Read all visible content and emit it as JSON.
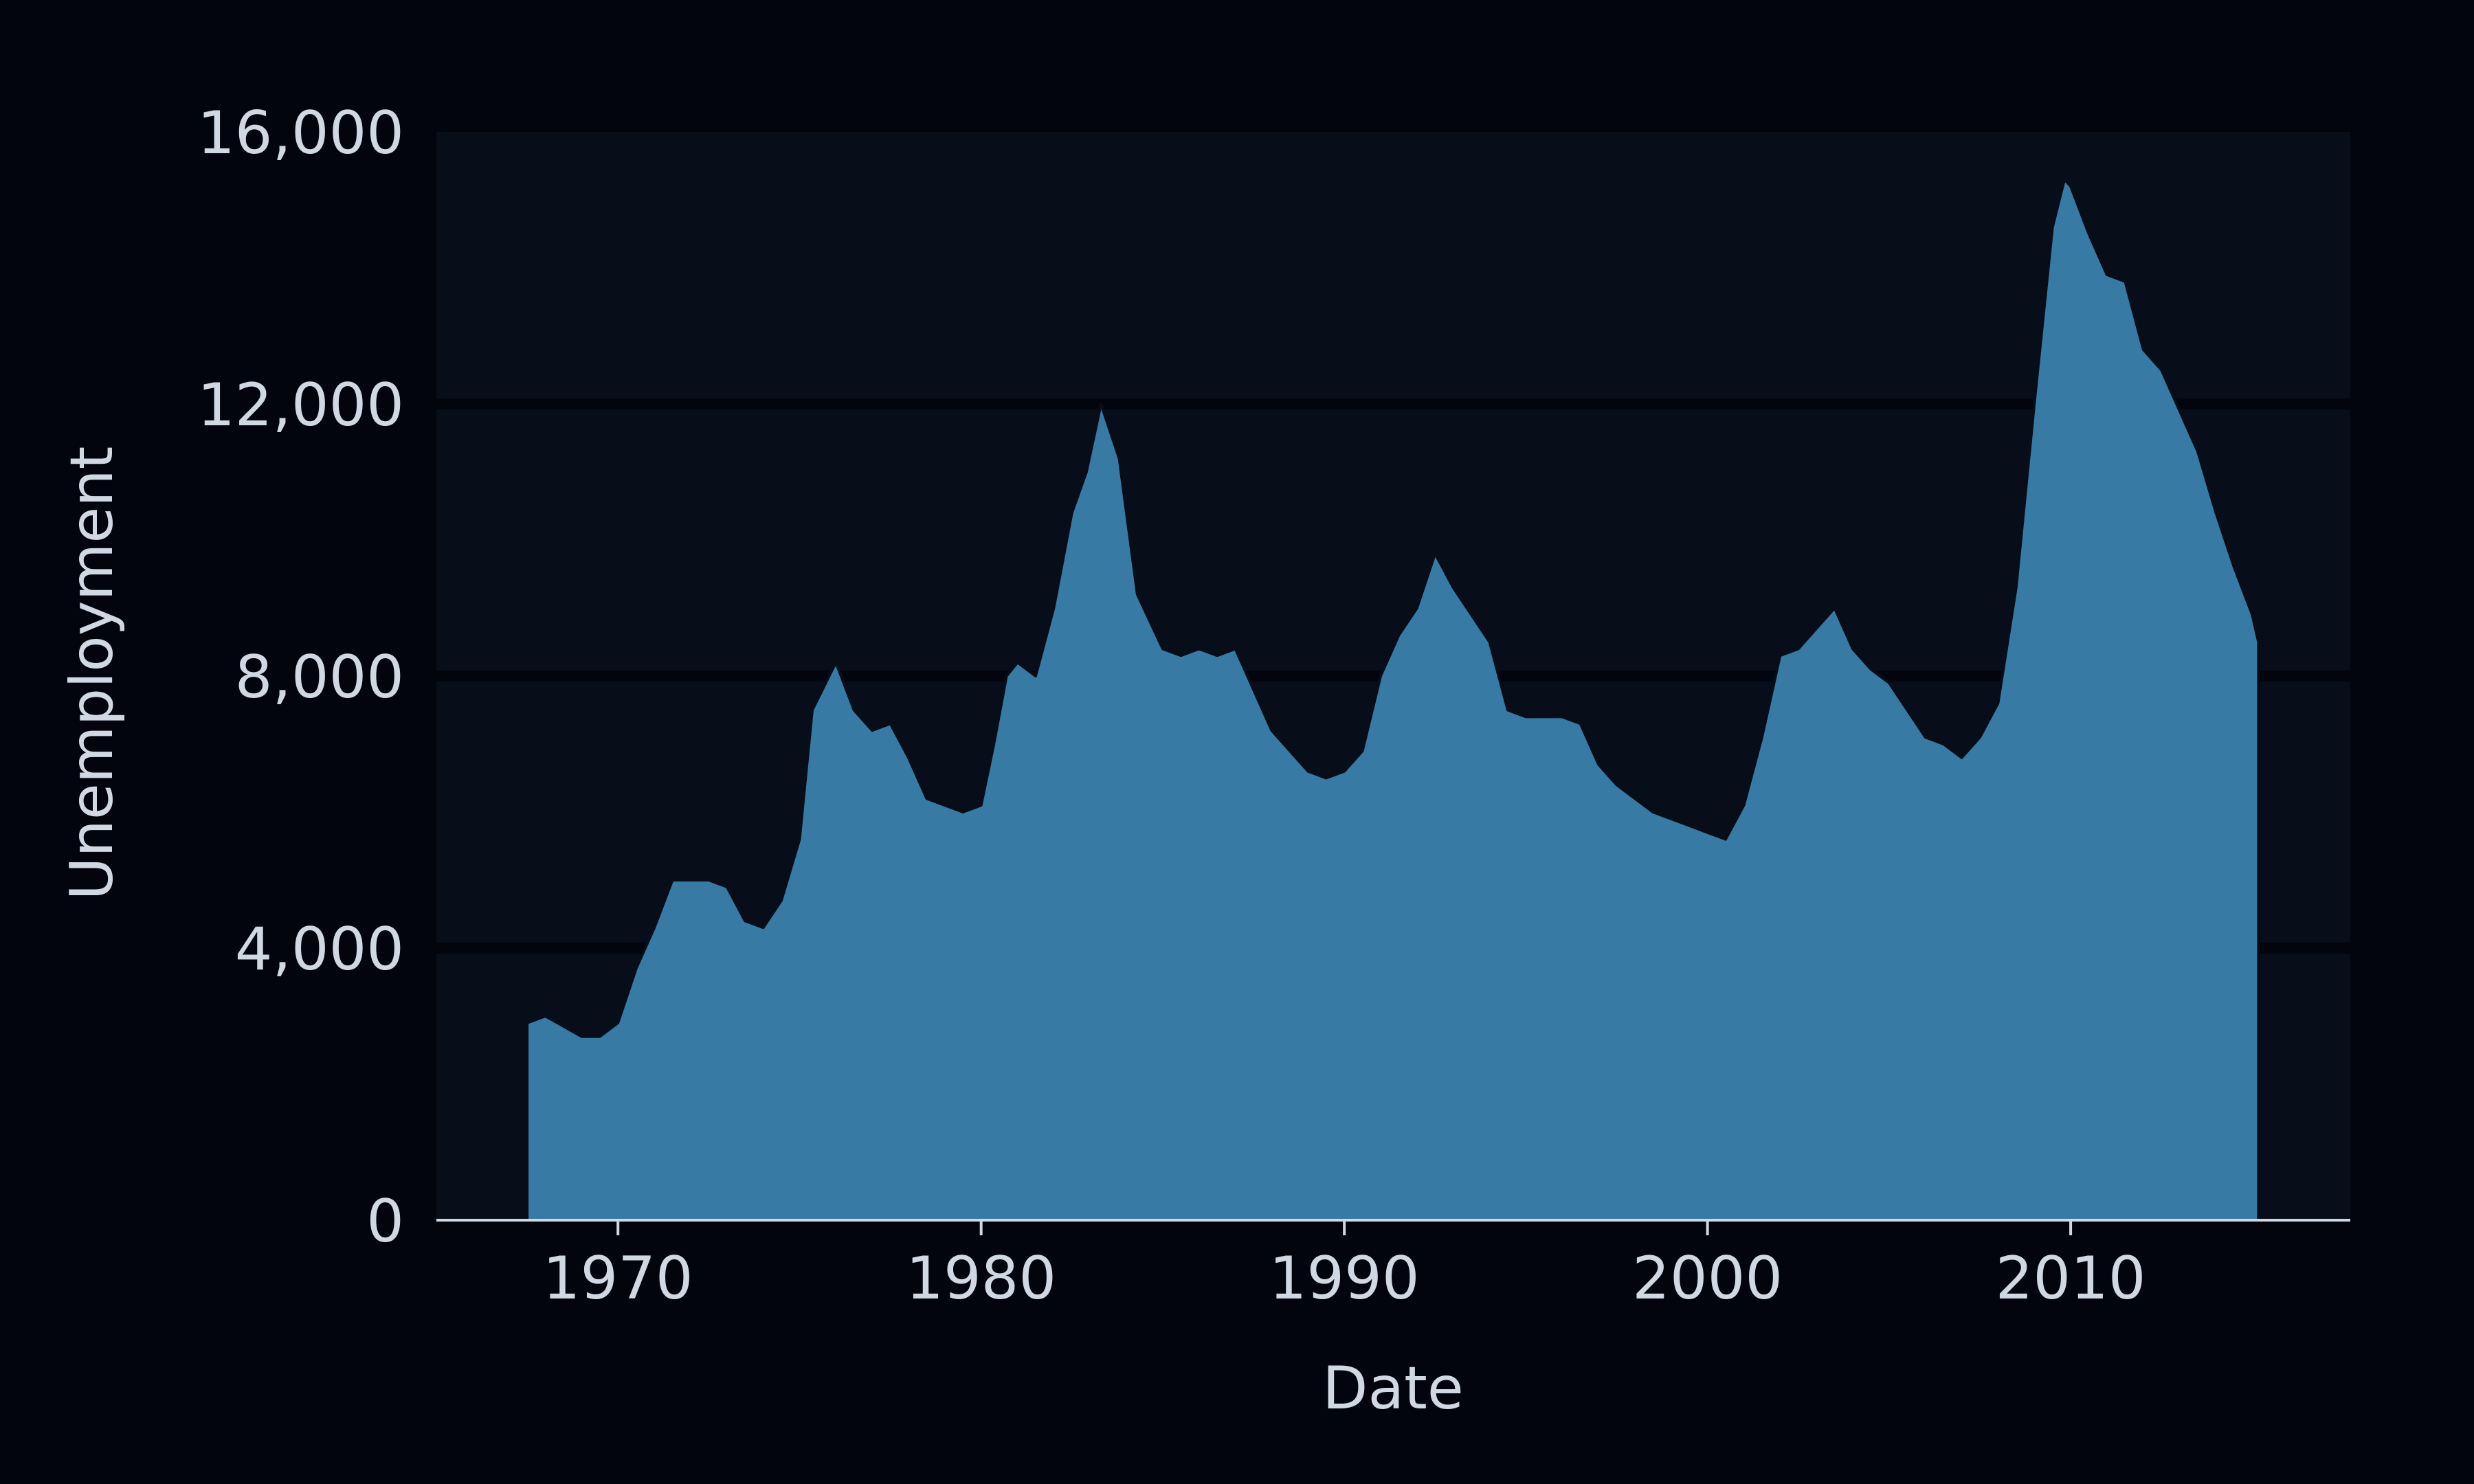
{
  "chart_data": {
    "type": "area",
    "xlabel": "Date",
    "ylabel": "Unemployment",
    "xlim": [
      1965.0,
      2017.7
    ],
    "ylim": [
      0,
      16000
    ],
    "x_ticks": [
      {
        "value": 1970,
        "label": "1970"
      },
      {
        "value": 1980,
        "label": "1980"
      },
      {
        "value": 1990,
        "label": "1990"
      },
      {
        "value": 2000,
        "label": "2000"
      },
      {
        "value": 2010,
        "label": "2010"
      }
    ],
    "y_ticks": [
      {
        "value": 0,
        "label": "0"
      },
      {
        "value": 4000,
        "label": "4,000"
      },
      {
        "value": 8000,
        "label": "8,000"
      },
      {
        "value": 12000,
        "label": "12,000"
      },
      {
        "value": 16000,
        "label": "16,000"
      }
    ],
    "grid": "horizontal",
    "colors": {
      "background": "#02050d",
      "plot_background": "#070e1a",
      "grid": "#02050d",
      "area_fill": "#377ba4",
      "area_edge": "#070e1a",
      "axis_line": "#cfd8e3",
      "text": "#cfd8e3"
    },
    "series": [
      {
        "x": [
          1967.5,
          1968.0,
          1968.5,
          1969.0,
          1969.5,
          1970.0,
          1970.5,
          1971.0,
          1971.5,
          1972.0,
          1972.5,
          1973.0,
          1973.5,
          1974.0,
          1974.5,
          1975.0,
          1975.35,
          1976.0,
          1976.5,
          1977.0,
          1977.5,
          1978.0,
          1978.5,
          1979.0,
          1979.5,
          1980.0,
          1980.35,
          1980.7,
          1981.0,
          1981.5,
          1982.0,
          1982.5,
          1982.9,
          1983.3,
          1983.8,
          1984.3,
          1985.0,
          1985.5,
          1986.0,
          1986.5,
          1987.0,
          1987.5,
          1988.0,
          1988.5,
          1989.0,
          1989.5,
          1990.0,
          1990.5,
          1991.0,
          1991.5,
          1992.0,
          1992.5,
          1993.0,
          1993.5,
          1994.0,
          1994.5,
          1995.0,
          1995.5,
          1996.0,
          1996.5,
          1997.0,
          1997.5,
          1998.0,
          1998.5,
          1999.0,
          1999.5,
          2000.0,
          2000.5,
          2001.0,
          2001.5,
          2002.0,
          2002.5,
          2003.0,
          2003.5,
          2004.0,
          2004.5,
          2005.0,
          2005.5,
          2006.0,
          2006.5,
          2007.0,
          2007.5,
          2008.0,
          2008.5,
          2009.0,
          2009.5,
          2009.83,
          2010.0,
          2010.5,
          2011.0,
          2011.5,
          2012.0,
          2012.5,
          2013.0,
          2013.5,
          2014.0,
          2014.5,
          2015.0,
          2015.17
        ],
        "values": [
          2900,
          3000,
          2850,
          2700,
          2700,
          2900,
          3700,
          4300,
          5000,
          5000,
          5000,
          4900,
          4400,
          4300,
          4700,
          5600,
          7500,
          8200,
          7500,
          7200,
          7300,
          6800,
          6200,
          6100,
          6000,
          6100,
          7000,
          8000,
          8200,
          8000,
          9000,
          10400,
          11000,
          12000,
          11200,
          9200,
          8400,
          8300,
          8400,
          8300,
          8400,
          7800,
          7200,
          6900,
          6600,
          6500,
          6600,
          6900,
          8000,
          8600,
          9000,
          9800,
          9300,
          8900,
          8500,
          7500,
          7400,
          7400,
          7400,
          7300,
          6700,
          6400,
          6200,
          6000,
          5900,
          5800,
          5700,
          5600,
          6100,
          7100,
          8300,
          8400,
          8700,
          9000,
          8400,
          8100,
          7900,
          7500,
          7100,
          7000,
          6800,
          7100,
          7600,
          9300,
          12000,
          14600,
          15300,
          15200,
          14500,
          13900,
          13800,
          12800,
          12500,
          11900,
          11300,
          10400,
          9600,
          8900,
          8500
        ]
      }
    ]
  }
}
